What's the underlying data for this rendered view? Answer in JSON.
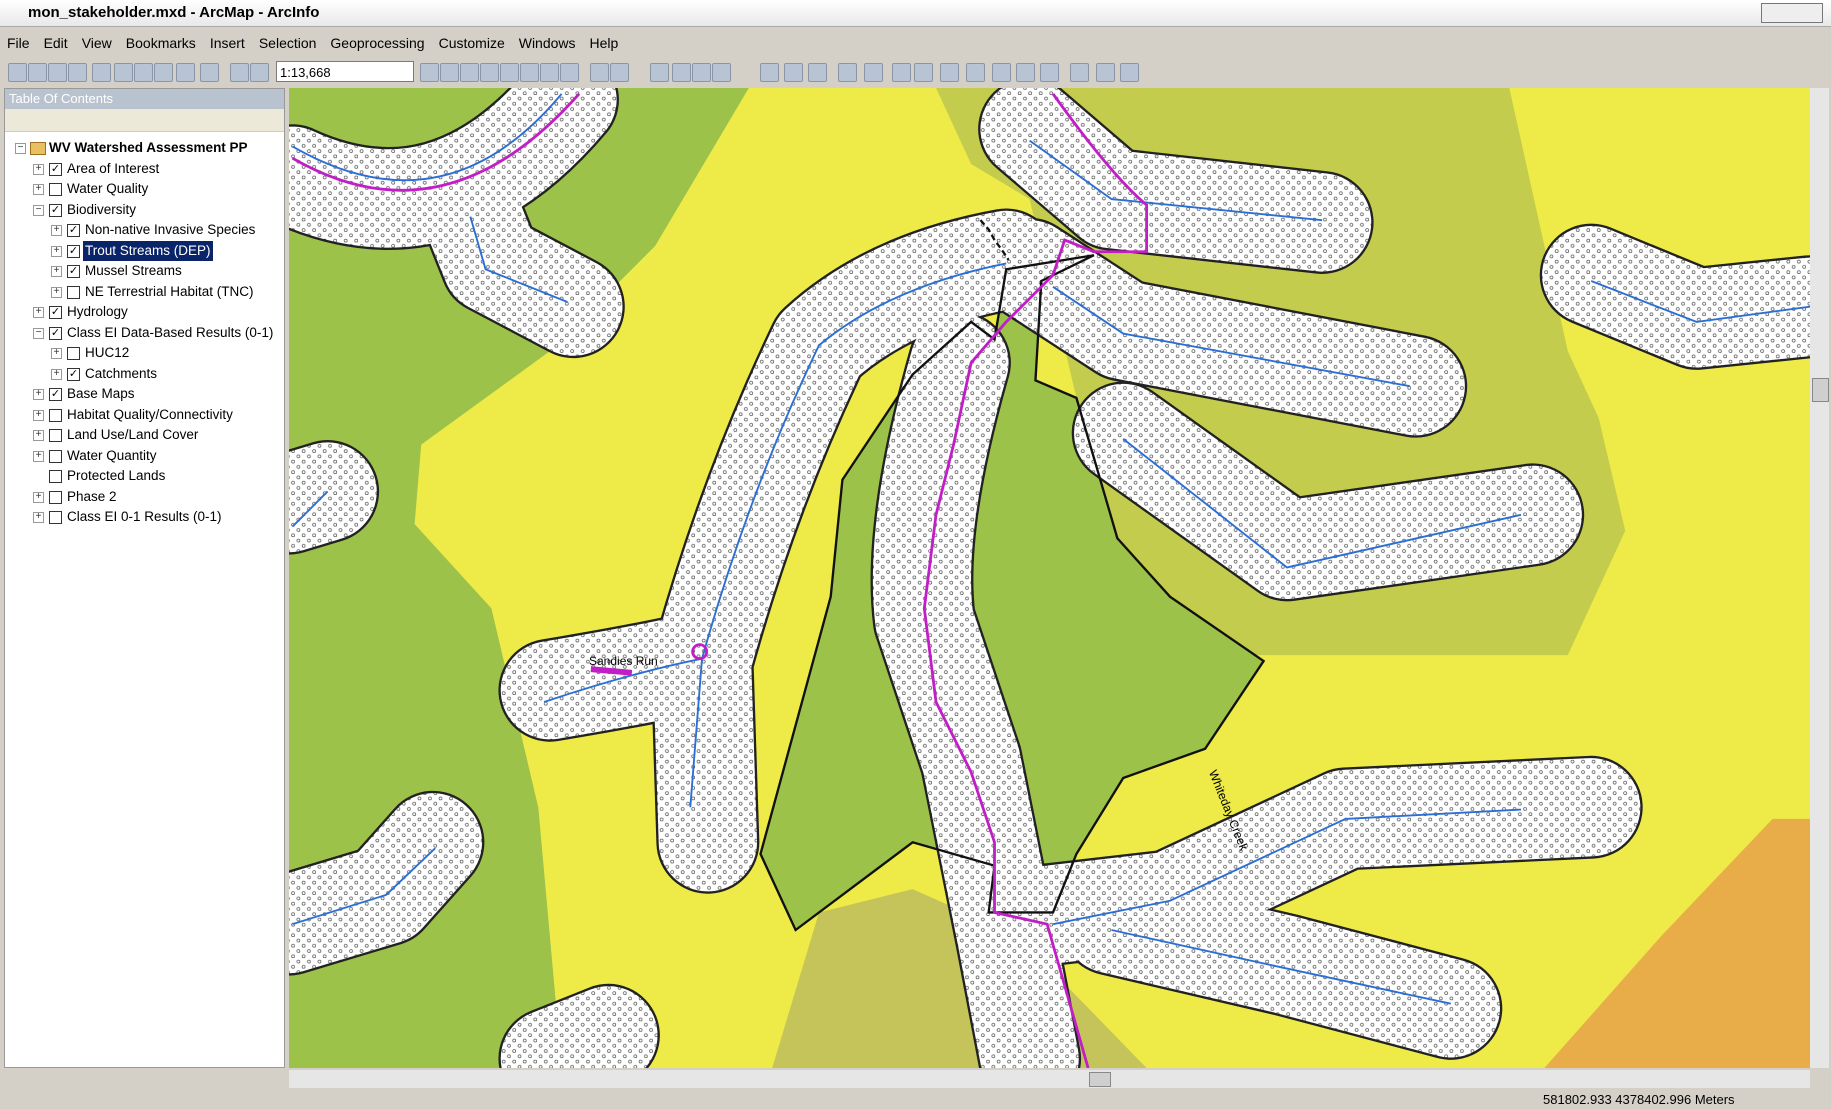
{
  "window": {
    "title": "mon_stakeholder.mxd - ArcMap - ArcInfo"
  },
  "menu": [
    "File",
    "Edit",
    "View",
    "Bookmarks",
    "Insert",
    "Selection",
    "Geoprocessing",
    "Customize",
    "Windows",
    "Help"
  ],
  "toolbar": {
    "scale": "1:13,668"
  },
  "toc": {
    "title": "Table Of Contents",
    "root": "WV Watershed Assessment PP",
    "items": [
      {
        "label": "Area of Interest",
        "checked": true,
        "level": 1,
        "expanded": false
      },
      {
        "label": "Water Quality",
        "checked": false,
        "level": 1,
        "expanded": false
      },
      {
        "label": "Biodiversity",
        "checked": true,
        "level": 1,
        "expanded": true
      },
      {
        "label": "Non-native Invasive Species",
        "checked": true,
        "level": 2,
        "expanded": false
      },
      {
        "label": "Trout Streams (DEP)",
        "checked": true,
        "level": 2,
        "expanded": false,
        "selected": true
      },
      {
        "label": "Mussel Streams",
        "checked": true,
        "level": 2,
        "expanded": false
      },
      {
        "label": "NE Terrestrial Habitat (TNC)",
        "checked": false,
        "level": 2,
        "expanded": false
      },
      {
        "label": "Hydrology",
        "checked": true,
        "level": 1,
        "expanded": false
      },
      {
        "label": "Class EI Data-Based Results (0-1)",
        "checked": true,
        "level": 1,
        "expanded": true
      },
      {
        "label": "HUC12",
        "checked": false,
        "level": 2,
        "expanded": false
      },
      {
        "label": "Catchments",
        "checked": true,
        "level": 2,
        "expanded": false
      },
      {
        "label": "Base Maps",
        "checked": true,
        "level": 1,
        "expanded": false
      },
      {
        "label": "Habitat Quality/Connectivity",
        "checked": false,
        "level": 1,
        "expanded": false
      },
      {
        "label": "Land Use/Land Cover",
        "checked": false,
        "level": 1,
        "expanded": false
      },
      {
        "label": "Water Quantity",
        "checked": false,
        "level": 1,
        "expanded": false
      },
      {
        "label": "Protected Lands",
        "checked": false,
        "level": 1,
        "expanded": null
      },
      {
        "label": "Phase 2",
        "checked": false,
        "level": 1,
        "expanded": false
      },
      {
        "label": "Class EI 0-1 Results (0-1)",
        "checked": false,
        "level": 1,
        "expanded": false
      }
    ]
  },
  "map": {
    "labels": [
      "Whiteday Creek",
      "Sandies Run"
    ]
  },
  "status": {
    "coordinates": "581802.933  4378402.996 Meters"
  }
}
